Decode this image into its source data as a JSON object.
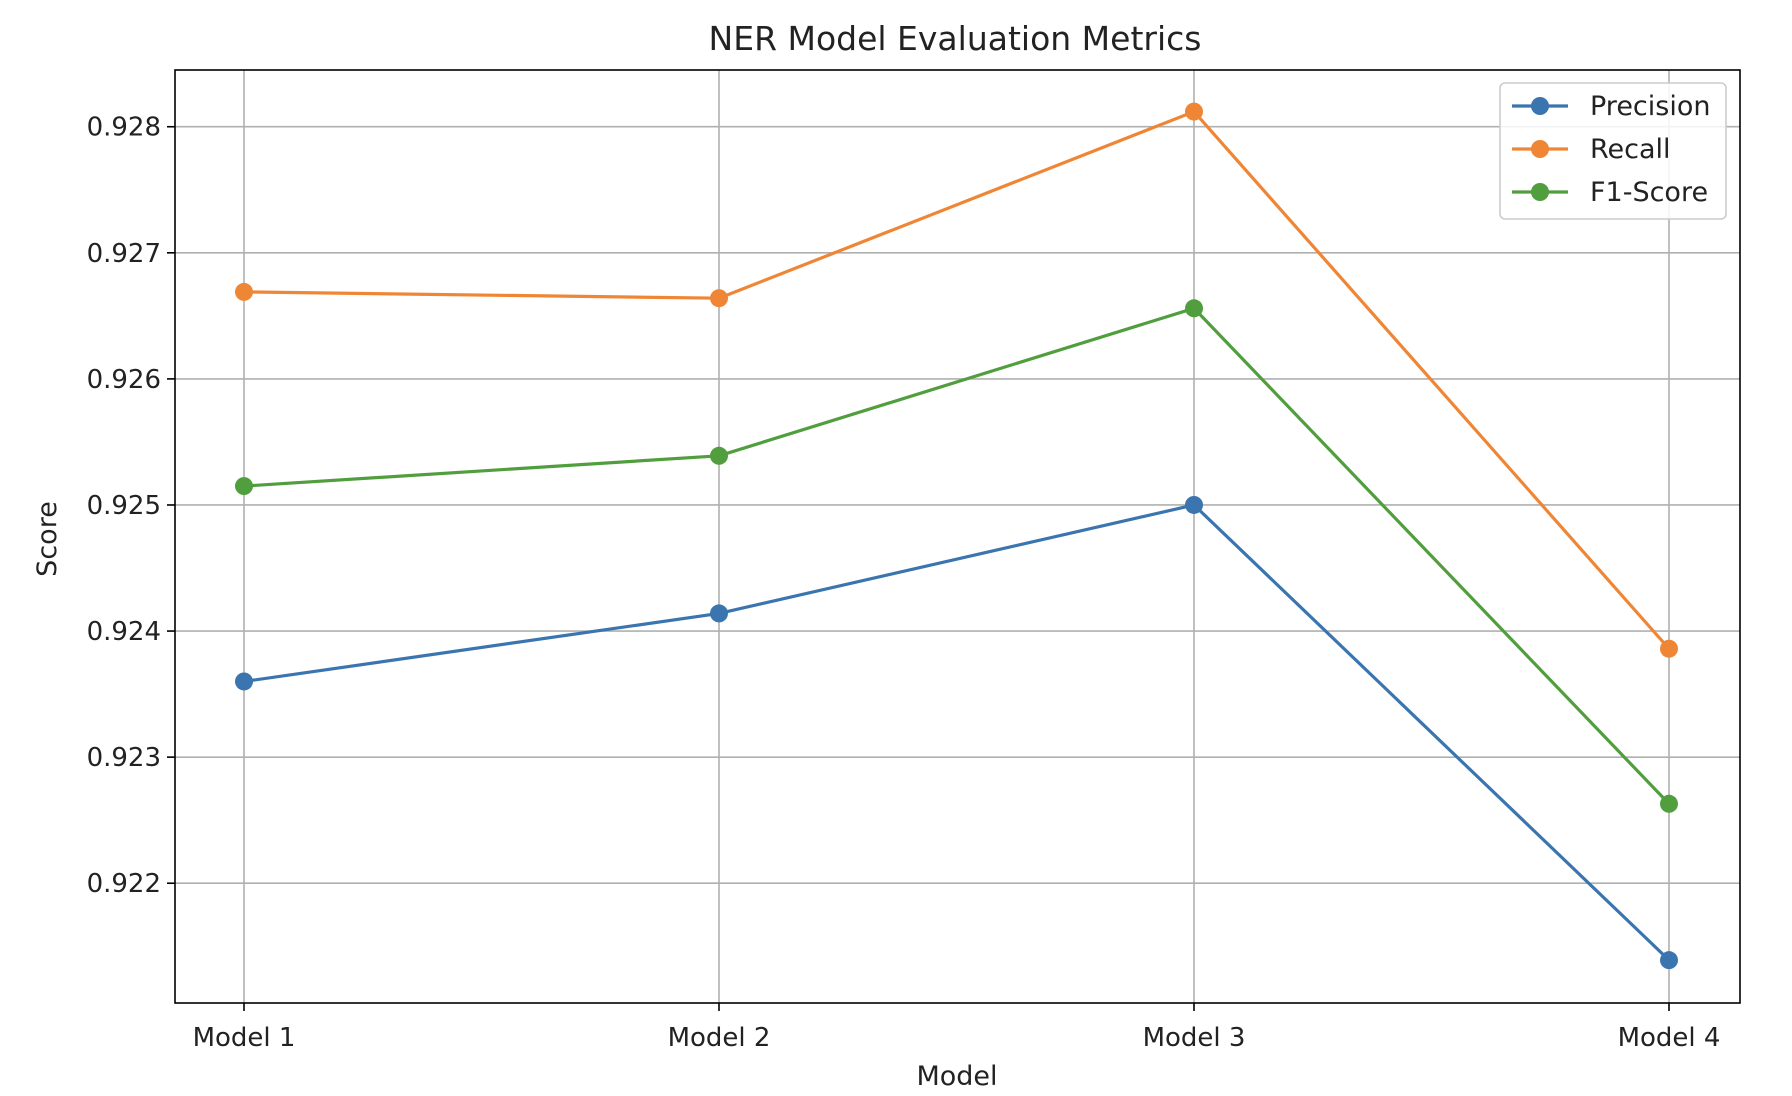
{
  "chart_data": {
    "type": "line",
    "title": "NER Model Evaluation Metrics",
    "xlabel": "Model",
    "ylabel": "Score",
    "categories": [
      "Model 1",
      "Model 2",
      "Model 3",
      "Model 4"
    ],
    "y_ticks": [
      "0.922",
      "0.923",
      "0.924",
      "0.925",
      "0.926",
      "0.927",
      "0.928"
    ],
    "ylim": [
      0.92105,
      0.92845
    ],
    "grid": true,
    "legend_position": "top-right",
    "series": [
      {
        "name": "Precision",
        "color": "#3b75af",
        "values": [
          0.9236,
          0.92414,
          0.925,
          0.92139
        ]
      },
      {
        "name": "Recall",
        "color": "#ef8636",
        "values": [
          0.92669,
          0.92664,
          0.92812,
          0.92386
        ]
      },
      {
        "name": "F1-Score",
        "color": "#519e3e",
        "values": [
          0.92515,
          0.92539,
          0.92656,
          0.92263
        ]
      }
    ]
  }
}
